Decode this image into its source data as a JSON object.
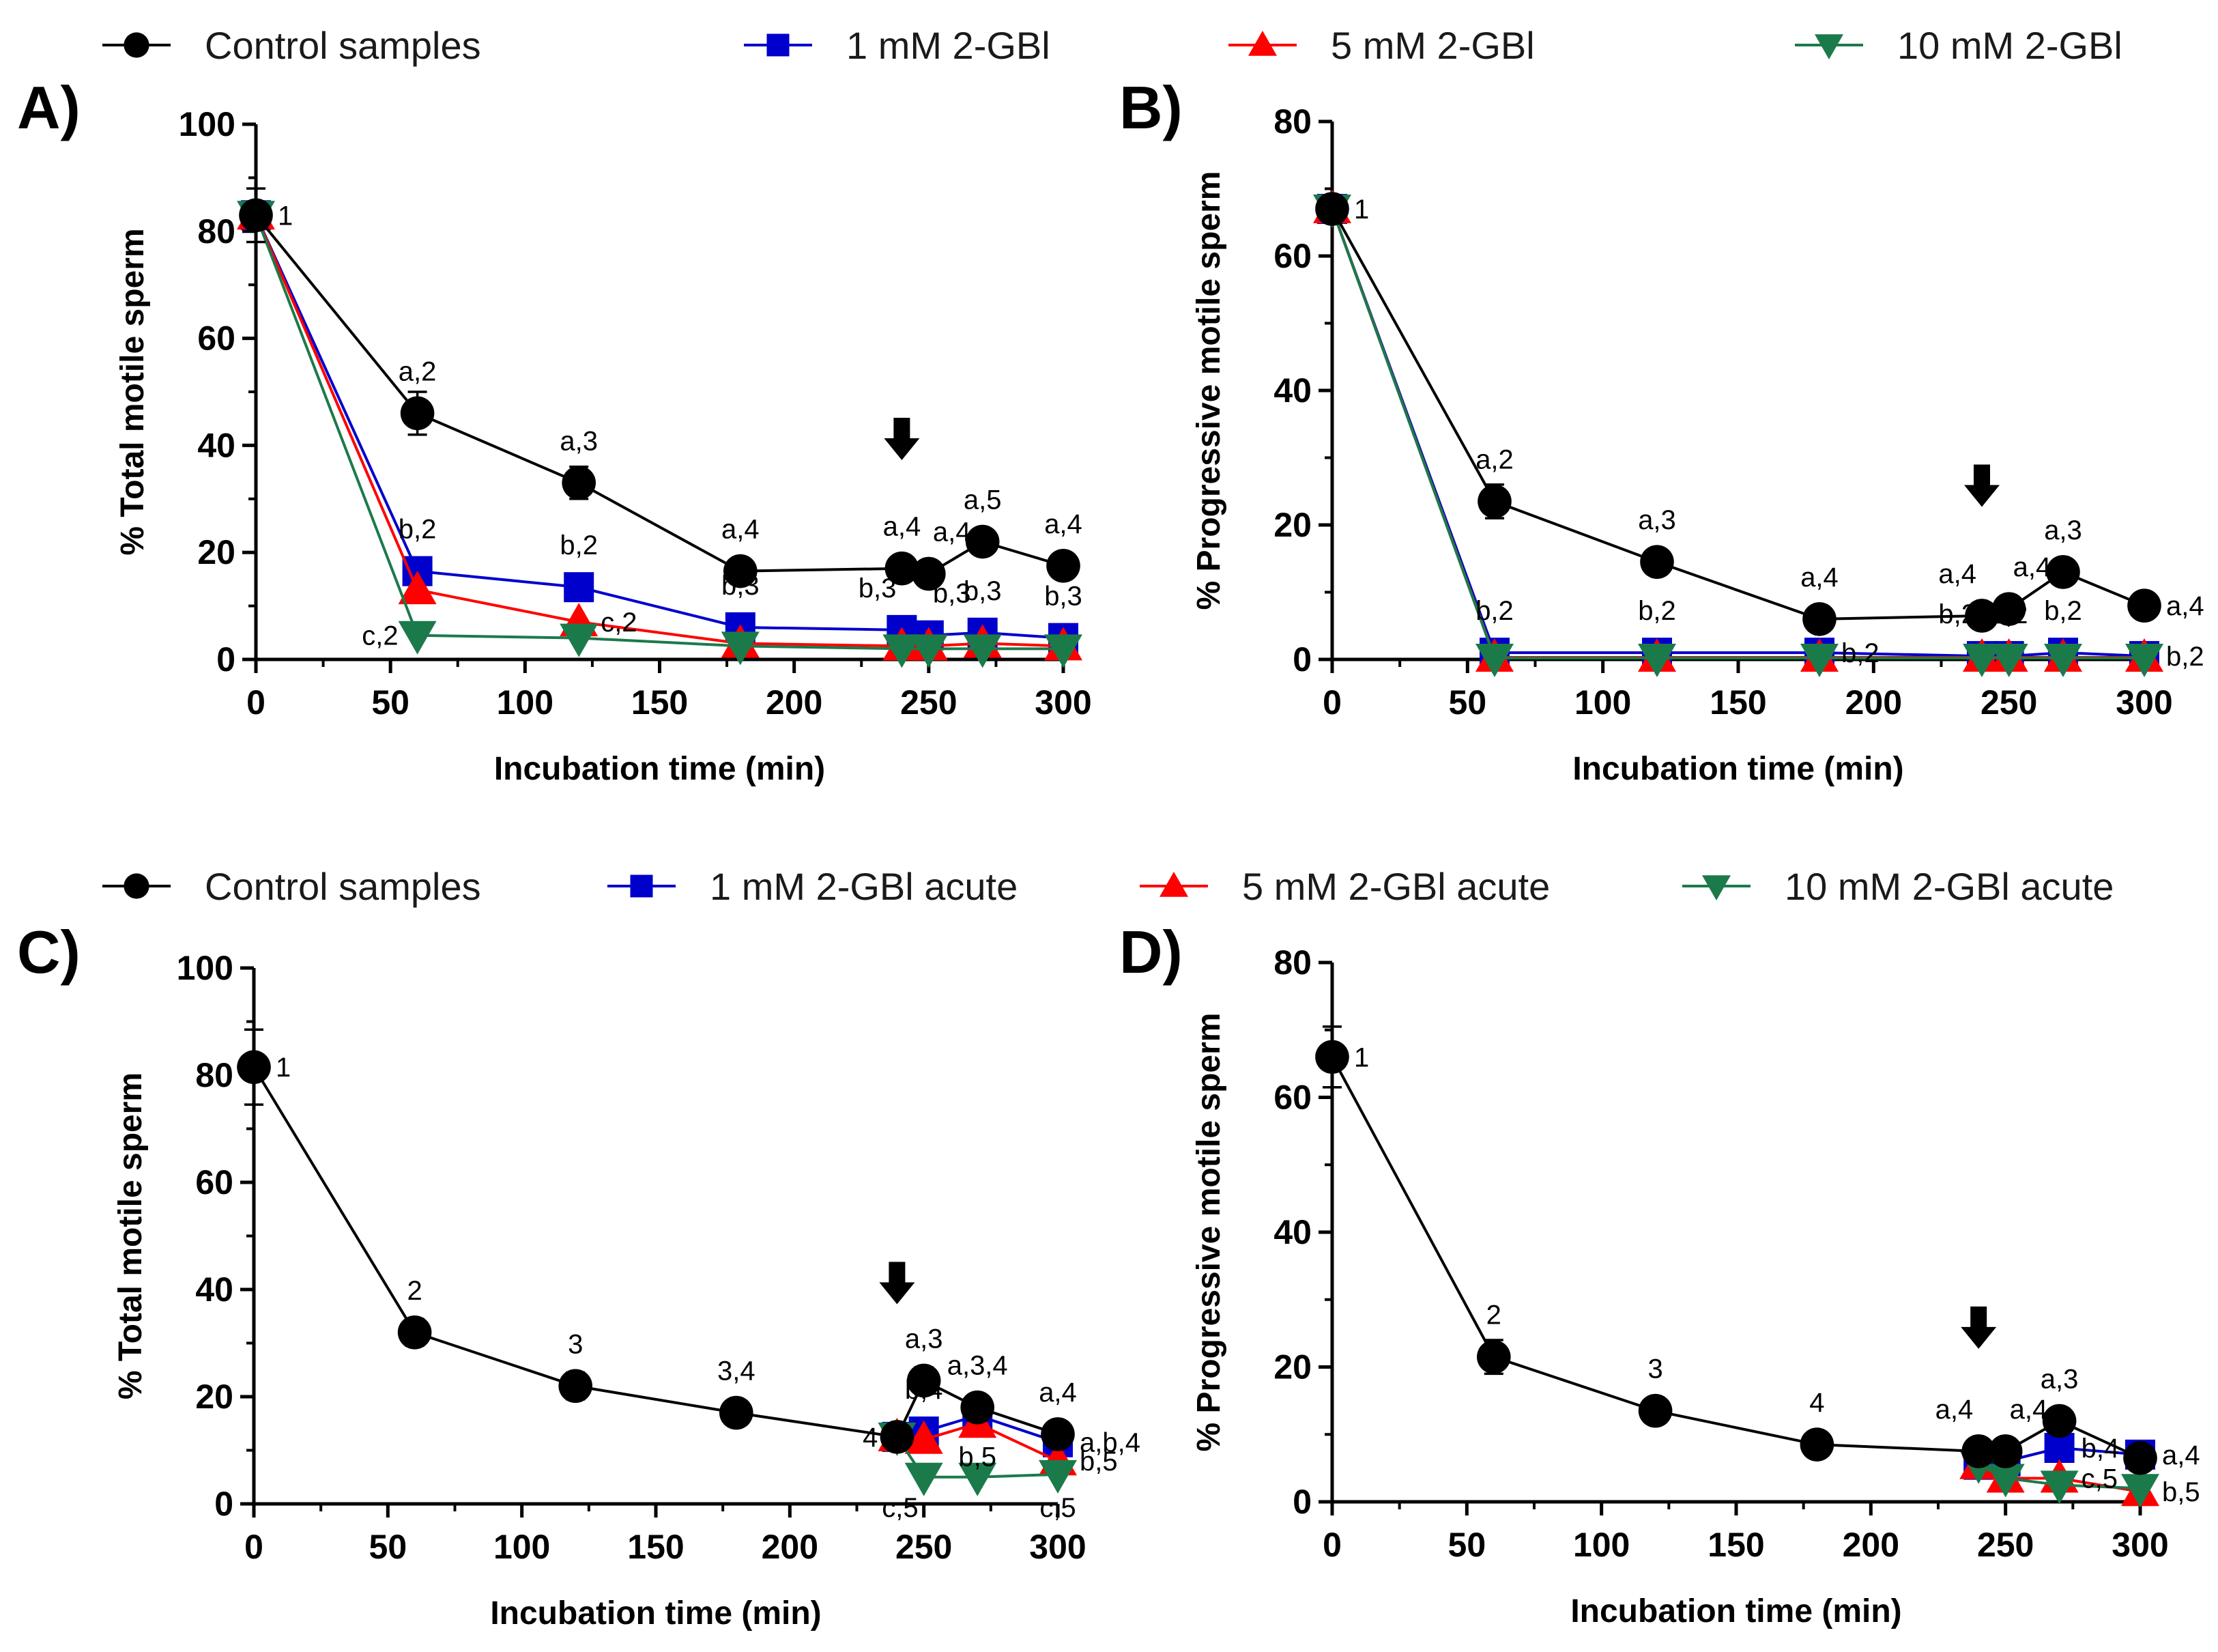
{
  "legend_top": {
    "items": [
      {
        "label": "Control samples",
        "color": "#000000",
        "marker": "circle"
      },
      {
        "label": "1 mM 2-GBl",
        "color": "#0000cc",
        "marker": "square"
      },
      {
        "label": "5 mM 2-GBl",
        "color": "#ff0000",
        "marker": "triangle-up"
      },
      {
        "label": "10 mM 2-GBl",
        "color": "#1b7a4a",
        "marker": "triangle-down"
      }
    ]
  },
  "legend_bottom": {
    "items": [
      {
        "label": "Control samples",
        "color": "#000000",
        "marker": "circle"
      },
      {
        "label": "1 mM 2-GBl acute",
        "color": "#0000cc",
        "marker": "square"
      },
      {
        "label": "5 mM 2-GBl acute",
        "color": "#ff0000",
        "marker": "triangle-up"
      },
      {
        "label": "10 mM 2-GBl acute",
        "color": "#1b7a4a",
        "marker": "triangle-down"
      }
    ]
  },
  "chart_data": [
    {
      "panel": "A)",
      "type": "line",
      "xlabel": "Incubation time (min)",
      "ylabel": "% Total motile sperm",
      "xlim": [
        0,
        300
      ],
      "ylim": [
        0,
        100
      ],
      "xticks": [
        0,
        50,
        100,
        150,
        200,
        250,
        300
      ],
      "yticks": [
        0,
        20,
        40,
        60,
        80,
        100
      ],
      "arrow_x": 240,
      "series": [
        {
          "name": "Control samples",
          "color": "#000000",
          "marker": "circle",
          "x": [
            0,
            60,
            120,
            180,
            240,
            250,
            270,
            300
          ],
          "y": [
            83,
            46,
            33,
            16.5,
            17,
            16,
            22,
            17.5
          ],
          "err": [
            5,
            4,
            3,
            1,
            1,
            1,
            2,
            1
          ]
        },
        {
          "name": "1 mM 2-GBl",
          "color": "#0000cc",
          "marker": "square",
          "x": [
            0,
            60,
            120,
            180,
            240,
            250,
            270,
            300
          ],
          "y": [
            83,
            16.5,
            13.5,
            6,
            5.5,
            4.5,
            5,
            4
          ],
          "err": [
            0,
            0,
            0,
            0,
            0,
            0,
            0,
            0
          ]
        },
        {
          "name": "5 mM 2-GBl",
          "color": "#ff0000",
          "marker": "triangle-up",
          "x": [
            0,
            60,
            120,
            180,
            240,
            250,
            270,
            300
          ],
          "y": [
            83,
            13,
            7,
            3,
            2.5,
            2.5,
            3,
            2.5
          ],
          "err": [
            0,
            0,
            0,
            0,
            0,
            0,
            0,
            0
          ]
        },
        {
          "name": "10 mM 2-GBl",
          "color": "#1b7a4a",
          "marker": "triangle-down",
          "x": [
            0,
            60,
            120,
            180,
            240,
            250,
            270,
            300
          ],
          "y": [
            83,
            4.5,
            4,
            2.5,
            2,
            2,
            2,
            2
          ],
          "err": [
            0,
            0,
            0,
            0,
            0,
            0,
            0,
            0
          ]
        }
      ],
      "annotations": [
        {
          "text": "1",
          "x": 0,
          "y": 83,
          "pos": "right"
        },
        {
          "text": "a,2",
          "x": 60,
          "y": 46,
          "pos": "above"
        },
        {
          "text": "a,3",
          "x": 120,
          "y": 33,
          "pos": "above"
        },
        {
          "text": "a,4",
          "x": 180,
          "y": 16.5,
          "pos": "above"
        },
        {
          "text": "a,4",
          "x": 240,
          "y": 17,
          "pos": "above"
        },
        {
          "text": "a,4",
          "x": 250,
          "y": 16,
          "pos": "above-right"
        },
        {
          "text": "a,5",
          "x": 270,
          "y": 22,
          "pos": "above"
        },
        {
          "text": "a,4",
          "x": 300,
          "y": 17.5,
          "pos": "above"
        },
        {
          "text": "b,2",
          "x": 60,
          "y": 16.5,
          "pos": "above"
        },
        {
          "text": "b,2",
          "x": 120,
          "y": 13.5,
          "pos": "above"
        },
        {
          "text": "b,3",
          "x": 180,
          "y": 6,
          "pos": "above"
        },
        {
          "text": "b,3",
          "x": 240,
          "y": 5.5,
          "pos": "above-left"
        },
        {
          "text": "b,3",
          "x": 250,
          "y": 4.5,
          "pos": "above-right"
        },
        {
          "text": "b,3",
          "x": 270,
          "y": 5,
          "pos": "above"
        },
        {
          "text": "b,3",
          "x": 300,
          "y": 4,
          "pos": "above"
        },
        {
          "text": "c,2",
          "x": 60,
          "y": 4.5,
          "pos": "left"
        },
        {
          "text": "c,2",
          "x": 120,
          "y": 7,
          "pos": "right"
        }
      ]
    },
    {
      "panel": "B)",
      "type": "line",
      "xlabel": "Incubation time (min)",
      "ylabel": "% Progressive motile sperm",
      "xlim": [
        0,
        300
      ],
      "ylim": [
        0,
        80
      ],
      "xticks": [
        0,
        50,
        100,
        150,
        200,
        250,
        300
      ],
      "yticks": [
        0,
        20,
        40,
        60,
        80
      ],
      "arrow_x": 240,
      "series": [
        {
          "name": "Control samples",
          "color": "#000000",
          "marker": "circle",
          "x": [
            0,
            60,
            120,
            180,
            240,
            250,
            270,
            300
          ],
          "y": [
            67,
            23.5,
            14.5,
            6,
            6.5,
            7.5,
            13,
            8
          ],
          "err": [
            2,
            2.5,
            1,
            1.5,
            1,
            1.5,
            1,
            1
          ]
        },
        {
          "name": "1 mM 2-GBl",
          "color": "#0000cc",
          "marker": "square",
          "x": [
            0,
            60,
            120,
            180,
            240,
            250,
            270,
            300
          ],
          "y": [
            67,
            1,
            1,
            1,
            0.5,
            0.5,
            1,
            0.5
          ],
          "err": [
            0,
            0,
            0,
            0,
            0,
            0,
            0,
            0
          ]
        },
        {
          "name": "5 mM 2-GBl",
          "color": "#ff0000",
          "marker": "triangle-up",
          "x": [
            0,
            60,
            120,
            180,
            240,
            250,
            270,
            300
          ],
          "y": [
            67,
            0.3,
            0.3,
            0.3,
            0.3,
            0.3,
            0.3,
            0.3
          ],
          "err": [
            0,
            0,
            0,
            0,
            0,
            0,
            0,
            0
          ]
        },
        {
          "name": "10 mM 2-GBl",
          "color": "#1b7a4a",
          "marker": "triangle-down",
          "x": [
            0,
            60,
            120,
            180,
            240,
            250,
            270,
            300
          ],
          "y": [
            67,
            0.2,
            0.2,
            0.2,
            0.2,
            0.2,
            0.2,
            0.2
          ],
          "err": [
            0,
            0,
            0,
            0,
            0,
            0,
            0,
            0
          ]
        }
      ],
      "annotations": [
        {
          "text": "1",
          "x": 0,
          "y": 67,
          "pos": "right"
        },
        {
          "text": "a,2",
          "x": 60,
          "y": 23.5,
          "pos": "above"
        },
        {
          "text": "a,3",
          "x": 120,
          "y": 14.5,
          "pos": "above"
        },
        {
          "text": "a,4",
          "x": 180,
          "y": 6,
          "pos": "above"
        },
        {
          "text": "a,4",
          "x": 240,
          "y": 6.5,
          "pos": "above-left"
        },
        {
          "text": "a,4",
          "x": 250,
          "y": 7.5,
          "pos": "above-right"
        },
        {
          "text": "a,3",
          "x": 270,
          "y": 13,
          "pos": "above"
        },
        {
          "text": "a,4",
          "x": 300,
          "y": 8,
          "pos": "right"
        },
        {
          "text": "b,2",
          "x": 60,
          "y": 1,
          "pos": "above"
        },
        {
          "text": "b,2",
          "x": 120,
          "y": 1,
          "pos": "above"
        },
        {
          "text": "b,2",
          "x": 180,
          "y": 1,
          "pos": "right"
        },
        {
          "text": "b,2",
          "x": 240,
          "y": 0.5,
          "pos": "above-left"
        },
        {
          "text": "b,2",
          "x": 250,
          "y": 0.5,
          "pos": "above"
        },
        {
          "text": "b,2",
          "x": 270,
          "y": 1,
          "pos": "above"
        },
        {
          "text": "b,2",
          "x": 300,
          "y": 0.5,
          "pos": "right"
        }
      ]
    },
    {
      "panel": "C)",
      "type": "line",
      "xlabel": "Incubation time (min)",
      "ylabel": "% Total motile sperm",
      "xlim": [
        0,
        300
      ],
      "ylim": [
        0,
        100
      ],
      "xticks": [
        0,
        50,
        100,
        150,
        200,
        250,
        300
      ],
      "yticks": [
        0,
        20,
        40,
        60,
        80,
        100
      ],
      "arrow_x": 240,
      "series": [
        {
          "name": "Control samples",
          "color": "#000000",
          "marker": "circle",
          "x": [
            0,
            60,
            120,
            180,
            240,
            250,
            270,
            300
          ],
          "y": [
            81.5,
            32,
            22,
            17,
            12.5,
            23,
            18,
            13
          ],
          "err": [
            7,
            2.5,
            2.5,
            2,
            1,
            2.5,
            2,
            2
          ]
        },
        {
          "name": "1 mM 2-GBl acute",
          "color": "#0000cc",
          "marker": "square",
          "x": [
            240,
            250,
            270,
            300
          ],
          "y": [
            12.5,
            13.5,
            16.5,
            11.5
          ],
          "err": [
            0,
            0,
            0,
            0
          ]
        },
        {
          "name": "5 mM 2-GBl acute",
          "color": "#ff0000",
          "marker": "triangle-up",
          "x": [
            240,
            250,
            270,
            300
          ],
          "y": [
            12.5,
            12,
            15,
            8
          ],
          "err": [
            0,
            0,
            0,
            0
          ]
        },
        {
          "name": "10 mM 2-GBl acute",
          "color": "#1b7a4a",
          "marker": "triangle-down",
          "x": [
            240,
            250,
            270,
            300
          ],
          "y": [
            12.5,
            5,
            5,
            5.5
          ],
          "err": [
            0,
            0,
            0,
            0
          ]
        }
      ],
      "annotations": [
        {
          "text": "1",
          "x": 0,
          "y": 81.5,
          "pos": "right"
        },
        {
          "text": "2",
          "x": 60,
          "y": 32,
          "pos": "above"
        },
        {
          "text": "3",
          "x": 120,
          "y": 22,
          "pos": "above"
        },
        {
          "text": "3,4",
          "x": 180,
          "y": 17,
          "pos": "above"
        },
        {
          "text": "4",
          "x": 240,
          "y": 12.5,
          "pos": "left"
        },
        {
          "text": "a,3",
          "x": 250,
          "y": 23,
          "pos": "above"
        },
        {
          "text": "a,3,4",
          "x": 270,
          "y": 18,
          "pos": "above"
        },
        {
          "text": "a,4",
          "x": 300,
          "y": 13,
          "pos": "above"
        },
        {
          "text": "b,4",
          "x": 250,
          "y": 13.5,
          "pos": "above"
        },
        {
          "text": "b,5",
          "x": 270,
          "y": 15,
          "pos": "below"
        },
        {
          "text": "a,b,4",
          "x": 300,
          "y": 11.5,
          "pos": "right"
        },
        {
          "text": "b,5",
          "x": 300,
          "y": 8,
          "pos": "right"
        },
        {
          "text": "c,5",
          "x": 250,
          "y": 5,
          "pos": "below-left"
        },
        {
          "text": "c,5",
          "x": 300,
          "y": 5.5,
          "pos": "below"
        }
      ]
    },
    {
      "panel": "D)",
      "type": "line",
      "xlabel": "Incubation time (min)",
      "ylabel": "% Progressive motile sperm",
      "xlim": [
        0,
        300
      ],
      "ylim": [
        0,
        80
      ],
      "xticks": [
        0,
        50,
        100,
        150,
        200,
        250,
        300
      ],
      "yticks": [
        0,
        20,
        40,
        60,
        80
      ],
      "arrow_x": 240,
      "series": [
        {
          "name": "Control samples",
          "color": "#000000",
          "marker": "circle",
          "x": [
            0,
            60,
            120,
            180,
            240,
            250,
            270,
            300
          ],
          "y": [
            66,
            21.5,
            13.5,
            8.5,
            7.5,
            7.5,
            12,
            6.5
          ],
          "err": [
            4.5,
            2.5,
            1.5,
            1,
            1,
            1,
            1,
            1
          ]
        },
        {
          "name": "1 mM 2-GBl acute",
          "color": "#0000cc",
          "marker": "square",
          "x": [
            240,
            250,
            270,
            300
          ],
          "y": [
            5.5,
            6,
            8,
            7
          ],
          "err": [
            0,
            0,
            0,
            0
          ]
        },
        {
          "name": "5 mM 2-GBl acute",
          "color": "#ff0000",
          "marker": "triangle-up",
          "x": [
            240,
            250,
            270,
            300
          ],
          "y": [
            5.5,
            3.5,
            3.5,
            1.5
          ],
          "err": [
            0,
            0,
            0,
            0
          ]
        },
        {
          "name": "10 mM 2-GBl acute",
          "color": "#1b7a4a",
          "marker": "triangle-down",
          "x": [
            240,
            250,
            270,
            300
          ],
          "y": [
            5.5,
            3.5,
            2.5,
            2
          ],
          "err": [
            0,
            0,
            0,
            0
          ]
        }
      ],
      "annotations": [
        {
          "text": "1",
          "x": 0,
          "y": 66,
          "pos": "right"
        },
        {
          "text": "2",
          "x": 60,
          "y": 21.5,
          "pos": "above"
        },
        {
          "text": "3",
          "x": 120,
          "y": 13.5,
          "pos": "above"
        },
        {
          "text": "4",
          "x": 180,
          "y": 8.5,
          "pos": "above"
        },
        {
          "text": "a,4",
          "x": 240,
          "y": 7.5,
          "pos": "above-left"
        },
        {
          "text": "a,4",
          "x": 250,
          "y": 7.5,
          "pos": "above-right"
        },
        {
          "text": "a,3",
          "x": 270,
          "y": 12,
          "pos": "above"
        },
        {
          "text": "b,4",
          "x": 270,
          "y": 8,
          "pos": "right"
        },
        {
          "text": "a,4",
          "x": 300,
          "y": 7,
          "pos": "right"
        },
        {
          "text": "c,5",
          "x": 270,
          "y": 3.5,
          "pos": "right"
        },
        {
          "text": "b,5",
          "x": 300,
          "y": 1.5,
          "pos": "right"
        }
      ]
    }
  ]
}
